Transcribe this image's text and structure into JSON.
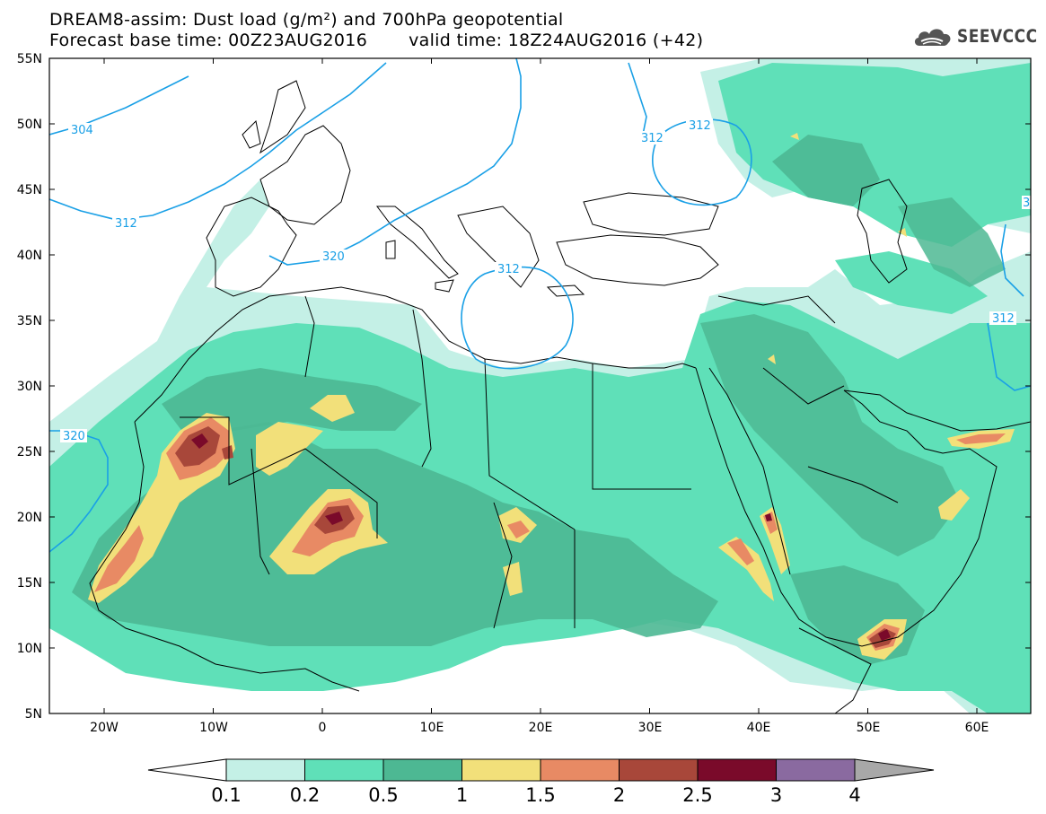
{
  "title": {
    "line1": "DREAM8-assim: Dust load (g/m²) and 700hPa geopotential",
    "line2_base": "Forecast base time: 00Z23AUG2016",
    "line2_valid": "valid time: 18Z24AUG2016 (+42)"
  },
  "logo": {
    "text": "SEEVCCC",
    "icon": "cloud-icon"
  },
  "axes": {
    "lat_labels": [
      "55N",
      "50N",
      "45N",
      "40N",
      "35N",
      "30N",
      "25N",
      "20N",
      "15N",
      "10N",
      "5N"
    ],
    "lon_labels": [
      "20W",
      "10W",
      "0",
      "10E",
      "20E",
      "30E",
      "40E",
      "50E",
      "60E"
    ]
  },
  "contour_labels": [
    "304",
    "312",
    "320",
    "312",
    "312",
    "312",
    "320",
    "312",
    "3"
  ],
  "colorbar": {
    "tick_labels": [
      "0.1",
      "0.2",
      "0.5",
      "1",
      "1.5",
      "2",
      "2.5",
      "3",
      "4"
    ],
    "colors": [
      "#c4f0e6",
      "#5fe0b8",
      "#4db893",
      "#f2e07a",
      "#e88a64",
      "#a8473a",
      "#7a0a2a",
      "#8a6aa0"
    ],
    "under_color": "#ffffff",
    "over_color": "#a8a8a8"
  },
  "colors": {
    "contour_line": "#1aa0e6",
    "coast_line": "#000000"
  }
}
